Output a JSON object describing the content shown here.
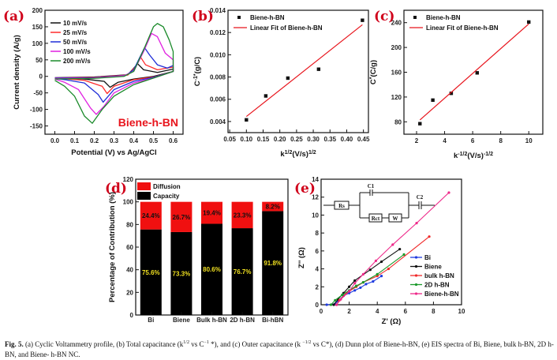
{
  "panel_labels": {
    "a": "(a)",
    "b": "(b)",
    "c": "(c)",
    "d": "(d)",
    "e": "(e)"
  },
  "caption": {
    "fig_label": "Fig. 5.",
    "t1": " (a) Cyclic Voltammetry profile, (b) Total capacitance (k",
    "s1": "1/2",
    "t2": " vs C",
    "s2": "−1",
    "t3": " *), and (c) Outer capacitance (k ",
    "s3": "−1/2",
    "t4": " vs C*), (d) Dunn plot of Biene-h-BN, (e) EIS spectra of Bi, Biene, bulk h-BN, 2D h-BN, and Biene- h-BN NC."
  },
  "chart_data": [
    {
      "id": "a",
      "type": "line",
      "xlabel": "Potential (V) vs Ag/AgCl",
      "ylabel": "Current density (A/g)",
      "annotation": "Biene-h-BN",
      "annotation_color": "#e8141c",
      "xlim": [
        -0.05,
        0.65
      ],
      "ylim": [
        -175,
        200
      ],
      "xticks": [
        0.0,
        0.1,
        0.2,
        0.3,
        0.4,
        0.5,
        0.6
      ],
      "xtick_labels": [
        "0.0",
        "0.1",
        "0.2",
        "0.3",
        "0.4",
        "0.5",
        "0.6"
      ],
      "yticks": [
        -150,
        -100,
        -50,
        0,
        50,
        100,
        150,
        200
      ],
      "ytick_labels": [
        "-150",
        "-100",
        "-50",
        "0",
        "50",
        "100",
        "150",
        "200"
      ],
      "legend": "top-left",
      "series": [
        {
          "name": "10 mV/s",
          "color": "#111111",
          "points": [
            [
              0,
              -4
            ],
            [
              0.2,
              -2
            ],
            [
              0.37,
              5
            ],
            [
              0.42,
              38
            ],
            [
              0.45,
              20
            ],
            [
              0.52,
              12
            ],
            [
              0.6,
              22
            ],
            [
              0.6,
              15
            ],
            [
              0.5,
              0
            ],
            [
              0.4,
              -8
            ],
            [
              0.32,
              -18
            ],
            [
              0.28,
              -33
            ],
            [
              0.25,
              -15
            ],
            [
              0.15,
              -8
            ],
            [
              0,
              -4
            ]
          ]
        },
        {
          "name": "25 mV/s",
          "color": "#ff2a2a",
          "points": [
            [
              0,
              -5
            ],
            [
              0.2,
              -3
            ],
            [
              0.37,
              4
            ],
            [
              0.41,
              30
            ],
            [
              0.435,
              58
            ],
            [
              0.46,
              35
            ],
            [
              0.52,
              20
            ],
            [
              0.6,
              28
            ],
            [
              0.6,
              15
            ],
            [
              0.5,
              -2
            ],
            [
              0.4,
              -10
            ],
            [
              0.3,
              -30
            ],
            [
              0.265,
              -52
            ],
            [
              0.24,
              -30
            ],
            [
              0.15,
              -12
            ],
            [
              0,
              -5
            ]
          ]
        },
        {
          "name": "50 mV/s",
          "color": "#1f2ed8",
          "points": [
            [
              0,
              -5
            ],
            [
              0.2,
              -4
            ],
            [
              0.36,
              3
            ],
            [
              0.4,
              20
            ],
            [
              0.455,
              87
            ],
            [
              0.48,
              65
            ],
            [
              0.52,
              35
            ],
            [
              0.57,
              25
            ],
            [
              0.6,
              33
            ],
            [
              0.6,
              15
            ],
            [
              0.5,
              -3
            ],
            [
              0.4,
              -15
            ],
            [
              0.3,
              -40
            ],
            [
              0.245,
              -78
            ],
            [
              0.22,
              -55
            ],
            [
              0.15,
              -20
            ],
            [
              0.05,
              -10
            ],
            [
              0,
              -6
            ]
          ]
        },
        {
          "name": "100 mV/s",
          "color": "#e020e0",
          "points": [
            [
              0,
              -6
            ],
            [
              0.2,
              -5
            ],
            [
              0.35,
              2
            ],
            [
              0.4,
              15
            ],
            [
              0.45,
              75
            ],
            [
              0.49,
              130
            ],
            [
              0.52,
              120
            ],
            [
              0.56,
              70
            ],
            [
              0.6,
              50
            ],
            [
              0.6,
              15
            ],
            [
              0.5,
              -5
            ],
            [
              0.4,
              -20
            ],
            [
              0.3,
              -50
            ],
            [
              0.25,
              -90
            ],
            [
              0.21,
              -115
            ],
            [
              0.18,
              -95
            ],
            [
              0.12,
              -40
            ],
            [
              0.05,
              -18
            ],
            [
              0,
              -8
            ]
          ]
        },
        {
          "name": "200 mV/s",
          "color": "#1a8a2a",
          "points": [
            [
              0,
              -8
            ],
            [
              0.2,
              -6
            ],
            [
              0.35,
              0
            ],
            [
              0.4,
              15
            ],
            [
              0.45,
              80
            ],
            [
              0.5,
              150
            ],
            [
              0.52,
              160
            ],
            [
              0.55,
              150
            ],
            [
              0.58,
              110
            ],
            [
              0.6,
              75
            ],
            [
              0.6,
              15
            ],
            [
              0.5,
              -5
            ],
            [
              0.4,
              -25
            ],
            [
              0.3,
              -60
            ],
            [
              0.24,
              -100
            ],
            [
              0.19,
              -142
            ],
            [
              0.15,
              -120
            ],
            [
              0.1,
              -60
            ],
            [
              0.05,
              -30
            ],
            [
              0,
              -12
            ]
          ]
        }
      ]
    },
    {
      "id": "b",
      "type": "scatter",
      "xlabel": "k",
      "xlabel_sup": "1/2",
      "xlabel_rest": "(V/s)",
      "xlabel_sup2": "1/2",
      "ylabel": "C",
      "ylabel_sup": "-1*",
      "ylabel_rest": "(g/C)",
      "xlim": [
        0.045,
        0.465
      ],
      "ylim": [
        0.003,
        0.014
      ],
      "xticks": [
        0.05,
        0.1,
        0.15,
        0.2,
        0.25,
        0.3,
        0.35,
        0.4,
        0.45
      ],
      "xtick_labels": [
        "0.05",
        "0.10",
        "0.15",
        "0.20",
        "0.25",
        "0.30",
        "0.35",
        "0.40",
        "0.45"
      ],
      "yticks": [
        0.004,
        0.006,
        0.008,
        0.01,
        0.012,
        0.014
      ],
      "ytick_labels": [
        "0.004",
        "0.006",
        "0.008",
        "0.010",
        "0.012",
        "0.014"
      ],
      "legend": "top-left",
      "series": [
        {
          "name": "Biene-h-BN",
          "kind": "scatter",
          "color": "#111111",
          "points": [
            [
              0.1,
              0.00415
            ],
            [
              0.158,
              0.0063
            ],
            [
              0.224,
              0.0079
            ],
            [
              0.316,
              0.0087
            ],
            [
              0.447,
              0.0131
            ]
          ]
        },
        {
          "name": "Linear Fit of Biene-h-BN",
          "kind": "line",
          "color": "#e8141c",
          "points": [
            [
              0.1,
              0.00445
            ],
            [
              0.447,
              0.0127
            ]
          ]
        }
      ]
    },
    {
      "id": "c",
      "type": "scatter",
      "xlabel": "k",
      "xlabel_sup": "-1/2",
      "xlabel_rest": "(V/s)",
      "xlabel_sup2": "-1/2",
      "ylabel": "C",
      "ylabel_sup": "*",
      "ylabel_rest": "(C/g)",
      "xlim": [
        1.1,
        11
      ],
      "ylim": [
        60,
        260
      ],
      "xticks": [
        2,
        4,
        6,
        8,
        10
      ],
      "xtick_labels": [
        "2",
        "4",
        "6",
        "8",
        "10"
      ],
      "yticks": [
        80,
        120,
        160,
        200,
        240
      ],
      "ytick_labels": [
        "80",
        "120",
        "160",
        "200",
        "240"
      ],
      "legend": "top-left",
      "series": [
        {
          "name": "Biene-h-BN",
          "kind": "scatter",
          "color": "#111111",
          "points": [
            [
              2.24,
              77
            ],
            [
              3.16,
              115
            ],
            [
              4.47,
              126
            ],
            [
              6.32,
              159
            ],
            [
              10,
              241
            ]
          ]
        },
        {
          "name": "Linear Fit of Biene-h-BN",
          "kind": "line",
          "color": "#e8141c",
          "points": [
            [
              2.24,
              83
            ],
            [
              10,
              238
            ]
          ]
        }
      ]
    },
    {
      "id": "d",
      "type": "bar",
      "stacked": true,
      "ylabel": "Percentage of Contribution (%)",
      "ylim": [
        0,
        120
      ],
      "yticks": [
        0,
        20,
        40,
        60,
        80,
        100,
        120
      ],
      "ytick_labels": [
        "0",
        "20",
        "40",
        "60",
        "80",
        "100",
        "120"
      ],
      "categories": [
        "Bi",
        "Biene",
        "Bulk h-BN",
        "2D h-BN",
        "Bi-hBN"
      ],
      "legend": "top-left",
      "series": [
        {
          "name": "Capacity",
          "color": "#000000",
          "label_color": "#f0e020",
          "values": [
            75.6,
            73.3,
            80.6,
            76.7,
            91.8
          ],
          "labels": [
            "75.6%",
            "73.3%",
            "80.6%",
            "76.7%",
            "91.8%"
          ]
        },
        {
          "name": "Diffusion",
          "color": "#f01010",
          "label_color": "#111111",
          "values": [
            24.4,
            26.7,
            19.4,
            23.3,
            8.2
          ],
          "labels": [
            "24.4%",
            "26.7%",
            "19.4%",
            "23.3%",
            "8.2%"
          ]
        }
      ]
    },
    {
      "id": "e",
      "type": "line",
      "xlabel": "Z' (Ω)",
      "ylabel": "Z'' (Ω)",
      "xlim": [
        0,
        10
      ],
      "ylim": [
        0,
        14
      ],
      "xticks": [
        0,
        2,
        4,
        6,
        8,
        10
      ],
      "xtick_labels": [
        "0",
        "2",
        "4",
        "6",
        "8",
        "10"
      ],
      "yticks": [
        0,
        2,
        4,
        6,
        8,
        10,
        12,
        14
      ],
      "ytick_labels": [
        "0",
        "2",
        "4",
        "6",
        "8",
        "10",
        "12",
        "14"
      ],
      "legend": "bottom-right",
      "circuit": {
        "rs": "Rs",
        "c1": "C1",
        "rct": "Rct",
        "w": "W",
        "c2": "C2"
      },
      "series": [
        {
          "name": "Bi",
          "color": "#1f3be0",
          "points": [
            [
              0.4,
              0
            ],
            [
              1.0,
              0.1
            ],
            [
              1.2,
              0.4
            ],
            [
              1.6,
              1.0
            ],
            [
              2.0,
              1.3
            ],
            [
              2.4,
              1.6
            ],
            [
              2.8,
              1.9
            ],
            [
              3.2,
              2.3
            ],
            [
              3.7,
              2.6
            ],
            [
              4.3,
              3.2
            ]
          ]
        },
        {
          "name": "Biene",
          "color": "#111111",
          "points": [
            [
              0.9,
              0
            ],
            [
              1.2,
              0.6
            ],
            [
              1.6,
              1.3
            ],
            [
              2.0,
              2.0
            ],
            [
              2.4,
              2.7
            ],
            [
              3.5,
              3.9
            ],
            [
              4.3,
              4.8
            ],
            [
              5.6,
              6.2
            ]
          ]
        },
        {
          "name": "bulk h-BN",
          "color": "#f02a2a",
          "points": [
            [
              1.1,
              0
            ],
            [
              1.3,
              0.5
            ],
            [
              1.8,
              1.3
            ],
            [
              2.5,
              2.0
            ],
            [
              3.0,
              2.5
            ],
            [
              4.0,
              3.2
            ],
            [
              4.8,
              4.0
            ],
            [
              7.7,
              7.6
            ]
          ]
        },
        {
          "name": "2D h-BN",
          "color": "#1a9a2a",
          "points": [
            [
              0.7,
              0
            ],
            [
              1.0,
              0.5
            ],
            [
              1.5,
              1.1
            ],
            [
              2.0,
              1.6
            ],
            [
              2.5,
              2.1
            ],
            [
              3.0,
              2.5
            ],
            [
              4.0,
              3.4
            ],
            [
              5.9,
              5.6
            ]
          ]
        },
        {
          "name": "Biene-h-BN",
          "color": "#ee2a8a",
          "points": [
            [
              1.1,
              0
            ],
            [
              1.4,
              0.6
            ],
            [
              2.0,
              1.5
            ],
            [
              2.4,
              2.4
            ],
            [
              3.0,
              3.4
            ],
            [
              3.9,
              4.9
            ],
            [
              5.1,
              6.7
            ],
            [
              6.8,
              9.1
            ],
            [
              9.1,
              12.5
            ]
          ]
        }
      ]
    }
  ]
}
